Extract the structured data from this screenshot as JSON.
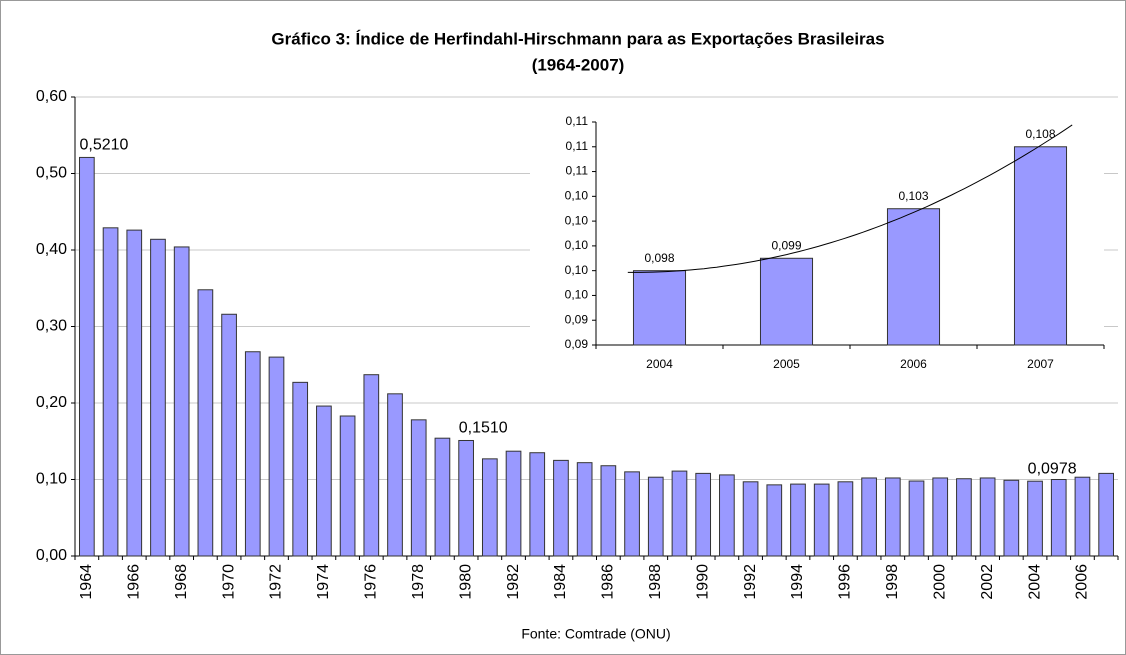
{
  "chart_data": [
    {
      "type": "bar",
      "title": [
        "Gráfico 3: Índice de Herfindahl-Hirschmann  para as Exportações Brasileiras",
        "(1964-2007)"
      ],
      "source": "Fonte: Comtrade (ONU)",
      "categories": [
        "1964",
        null,
        "1966",
        null,
        "1968",
        null,
        "1970",
        null,
        "1972",
        null,
        "1974",
        null,
        "1976",
        null,
        "1978",
        null,
        "1980",
        null,
        "1982",
        null,
        "1984",
        null,
        "1986",
        null,
        "1988",
        null,
        "1990",
        null,
        "1992",
        null,
        "1994",
        null,
        "1996",
        null,
        "1998",
        null,
        "2000",
        null,
        "2002",
        null,
        "2004",
        null,
        "2006",
        null
      ],
      "values": [
        0.521,
        0.429,
        0.426,
        0.414,
        0.404,
        0.348,
        0.316,
        0.267,
        0.26,
        0.227,
        0.196,
        0.183,
        0.237,
        0.212,
        0.178,
        0.154,
        0.151,
        0.127,
        0.137,
        0.135,
        0.125,
        0.122,
        0.118,
        0.11,
        0.103,
        0.111,
        0.108,
        0.106,
        0.097,
        0.093,
        0.094,
        0.094,
        0.097,
        0.102,
        0.102,
        0.098,
        0.102,
        0.101,
        0.102,
        0.099,
        0.0978,
        0.1,
        0.103,
        0.108
      ],
      "value_labels": [
        "0,5210",
        null,
        null,
        null,
        null,
        null,
        null,
        null,
        null,
        null,
        null,
        null,
        null,
        null,
        null,
        null,
        "0,1510",
        null,
        null,
        null,
        null,
        null,
        null,
        null,
        null,
        null,
        null,
        null,
        null,
        null,
        null,
        null,
        null,
        null,
        null,
        null,
        null,
        null,
        null,
        null,
        "0,0978",
        null,
        null,
        null
      ],
      "color": "#9999ff",
      "ylim": [
        0,
        0.6
      ],
      "yticks": [
        {
          "value": 0,
          "label": "0,00"
        },
        {
          "value": 0.1,
          "label": "0,10"
        },
        {
          "value": 0.2,
          "label": "0,20"
        },
        {
          "value": 0.3,
          "label": "0,30"
        },
        {
          "value": 0.4,
          "label": "0,40"
        },
        {
          "value": 0.5,
          "label": "0,50"
        },
        {
          "value": 0.6,
          "label": "0,60"
        }
      ],
      "grid": true
    },
    {
      "type": "bar",
      "categories": [
        "2004",
        "2005",
        "2006",
        "2007"
      ],
      "values": [
        0.098,
        0.099,
        0.103,
        0.108
      ],
      "value_labels": [
        "0,098",
        "0,099",
        "0,103",
        "0,108"
      ],
      "color": "#9999ff",
      "ylim": [
        0.092,
        0.11
      ],
      "yticks": [
        {
          "value": 0.092,
          "label": "0,09"
        },
        {
          "value": 0.094,
          "label": "0,09"
        },
        {
          "value": 0.096,
          "label": "0,10"
        },
        {
          "value": 0.098,
          "label": "0,10"
        },
        {
          "value": 0.1,
          "label": "0,10"
        },
        {
          "value": 0.102,
          "label": "0,10"
        },
        {
          "value": 0.104,
          "label": "0,10"
        },
        {
          "value": 0.106,
          "label": "0,11"
        },
        {
          "value": 0.108,
          "label": "0,11"
        },
        {
          "value": 0.11,
          "label": "0,11"
        }
      ],
      "grid": false,
      "trendline": "polynomial"
    }
  ]
}
